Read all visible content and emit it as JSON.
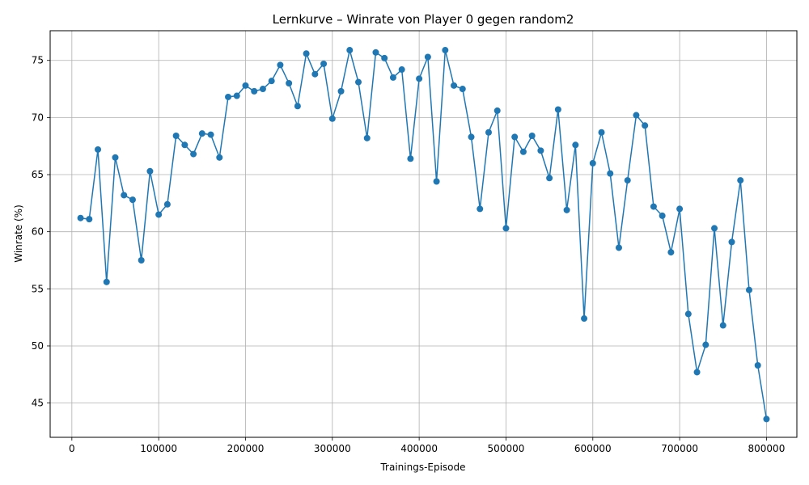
{
  "chart_data": {
    "type": "line",
    "title": "Lernkurve – Winrate von Player 0 gegen random2",
    "xlabel": "Trainings-Episode",
    "ylabel": "Winrate (%)",
    "xlim": [
      -25000,
      835000
    ],
    "ylim": [
      42,
      77.6
    ],
    "xticks": [
      0,
      100000,
      200000,
      300000,
      400000,
      500000,
      600000,
      700000,
      800000
    ],
    "yticks": [
      45,
      50,
      55,
      60,
      65,
      70,
      75
    ],
    "grid": true,
    "line_color": "#1f77b4",
    "series": [
      {
        "x": [
          10000,
          20000,
          30000,
          40000,
          50000,
          60000,
          70000,
          80000,
          90000,
          100000,
          110000,
          120000,
          130000,
          140000,
          150000,
          160000,
          170000,
          180000,
          190000,
          200000,
          210000,
          220000,
          230000,
          240000,
          250000,
          260000,
          270000,
          280000,
          290000,
          300000,
          310000,
          320000,
          330000,
          340000,
          350000,
          360000,
          370000,
          380000,
          390000,
          400000,
          410000,
          420000,
          430000,
          440000,
          450000,
          460000,
          470000,
          480000,
          490000,
          500000,
          510000,
          520000,
          530000,
          540000,
          550000,
          560000,
          570000,
          580000,
          590000,
          600000,
          610000,
          620000,
          630000,
          640000,
          650000,
          660000,
          670000,
          680000,
          690000,
          700000,
          710000,
          720000,
          730000,
          740000,
          750000,
          760000,
          770000,
          780000,
          790000,
          800000
        ],
        "values": [
          61.2,
          61.1,
          67.2,
          55.6,
          66.5,
          63.2,
          62.8,
          57.5,
          65.3,
          61.5,
          62.4,
          68.4,
          67.6,
          66.8,
          68.6,
          68.5,
          66.5,
          71.8,
          71.9,
          72.8,
          72.3,
          72.5,
          73.2,
          74.6,
          73.0,
          71.0,
          75.6,
          73.8,
          74.7,
          69.9,
          72.3,
          75.9,
          73.1,
          68.2,
          75.7,
          75.2,
          73.5,
          74.2,
          66.4,
          73.4,
          75.3,
          64.4,
          75.9,
          72.8,
          72.5,
          68.3,
          62.0,
          68.7,
          70.6,
          60.3,
          68.3,
          67.0,
          68.4,
          67.1,
          64.7,
          70.7,
          61.9,
          67.6,
          52.4,
          66.0,
          68.7,
          65.1,
          58.6,
          64.5,
          70.2,
          69.3,
          62.2,
          61.4,
          58.2,
          62.0,
          52.8,
          47.7,
          50.1,
          60.3,
          51.8,
          59.1,
          64.5,
          54.9,
          48.3,
          43.6
        ]
      }
    ]
  }
}
